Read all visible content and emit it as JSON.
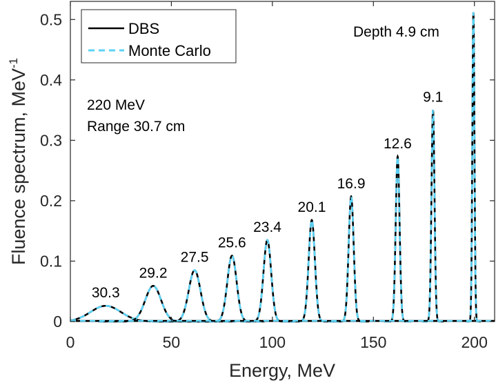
{
  "chart_data": {
    "type": "line",
    "xlabel": "Energy, MeV",
    "ylabel_main": "Fluence spectrum, MeV",
    "ylabel_sup": "-1",
    "xlim": [
      0,
      210
    ],
    "ylim": [
      0,
      0.53
    ],
    "xticks": [
      0,
      50,
      100,
      150,
      200
    ],
    "yticks": [
      0,
      0.1,
      0.2,
      0.3,
      0.4,
      0.5
    ],
    "xtick_labels": [
      "0",
      "50",
      "100",
      "150",
      "200"
    ],
    "ytick_labels": [
      "0",
      "0.1",
      "0.2",
      "0.3",
      "0.4",
      "0.5"
    ],
    "grid": false,
    "legend_position": "top-left",
    "series": [
      {
        "name": "DBS",
        "color": "#000000",
        "style": "solid"
      },
      {
        "name": "Monte Carlo",
        "color": "#5bd3f5",
        "style": "dashed"
      }
    ],
    "peaks": [
      {
        "depth": "30.3",
        "center": 17.5,
        "height": 0.026,
        "sigma": 7.5
      },
      {
        "depth": "29.2",
        "center": 41.0,
        "height": 0.059,
        "sigma": 3.9
      },
      {
        "depth": "27.5",
        "center": 61.5,
        "height": 0.085,
        "sigma": 2.9
      },
      {
        "depth": "25.6",
        "center": 80.0,
        "height": 0.109,
        "sigma": 2.3
      },
      {
        "depth": "23.4",
        "center": 97.5,
        "height": 0.135,
        "sigma": 1.9
      },
      {
        "depth": "20.1",
        "center": 119.5,
        "height": 0.168,
        "sigma": 1.55
      },
      {
        "depth": "16.9",
        "center": 139.0,
        "height": 0.207,
        "sigma": 1.25
      },
      {
        "depth": "12.6",
        "center": 162.0,
        "height": 0.273,
        "sigma": 0.95
      },
      {
        "depth": "9.1",
        "center": 179.5,
        "height": 0.35,
        "sigma": 0.75
      },
      {
        "depth": "4.9",
        "center": 199.5,
        "height": 0.512,
        "sigma": 0.52
      }
    ],
    "annotations": {
      "energy": "220 MeV",
      "range": "Range 30.7 cm",
      "depth_prefix": "Depth 4.9 cm"
    }
  }
}
